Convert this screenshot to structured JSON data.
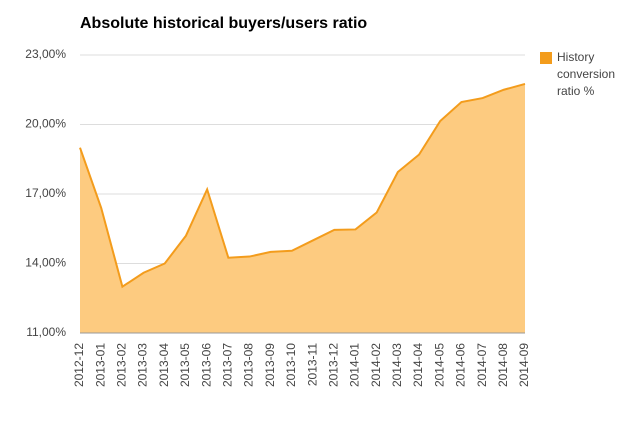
{
  "chart_data": {
    "type": "area",
    "title": "Absolute historical buyers/users ratio",
    "categories": [
      "2012-12",
      "2013-01",
      "2013-02",
      "2013-03",
      "2013-04",
      "2013-05",
      "2013-06",
      "2013-07",
      "2013-08",
      "2013-09",
      "2013-10",
      "2013-11",
      "2013-12",
      "2014-01",
      "2014-02",
      "2014-03",
      "2014-04",
      "2014-05",
      "2014-06",
      "2014-07",
      "2014-08",
      "2014-09"
    ],
    "series": [
      {
        "name": "History conversion ratio %",
        "color": "#f39c1c",
        "fill": "#fdcb80",
        "values": [
          19.0,
          16.4,
          13.0,
          13.6,
          14.0,
          15.2,
          17.2,
          14.25,
          14.3,
          14.5,
          14.55,
          15.0,
          15.45,
          15.47,
          16.2,
          17.95,
          18.7,
          20.15,
          20.97,
          21.14,
          21.5,
          21.75
        ]
      }
    ],
    "ylim": [
      11,
      23
    ],
    "yticks": [
      {
        "value": 11,
        "label": "11,00%"
      },
      {
        "value": 14,
        "label": "14,00%"
      },
      {
        "value": 17,
        "label": "17,00%"
      },
      {
        "value": 20,
        "label": "20,00%"
      },
      {
        "value": 23,
        "label": "23,00%"
      }
    ],
    "grid": true,
    "legend": "right"
  }
}
